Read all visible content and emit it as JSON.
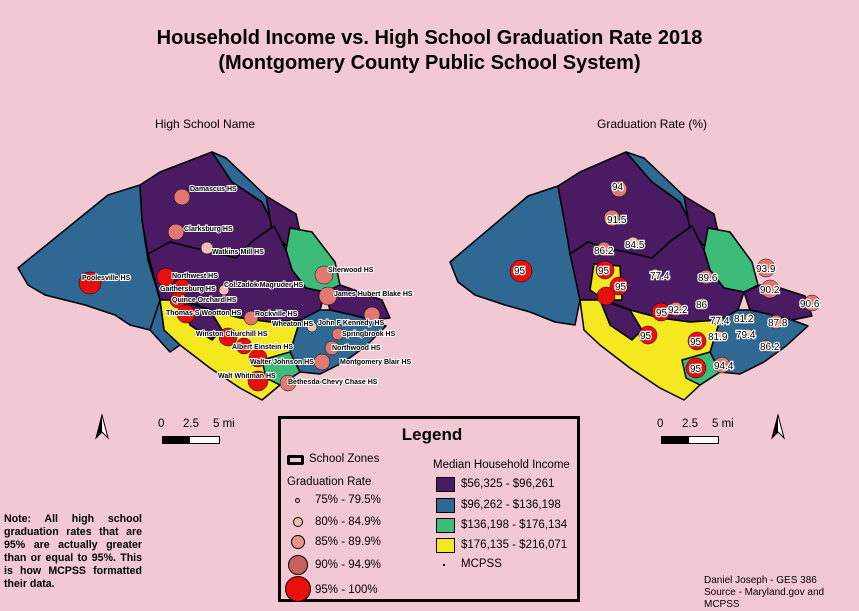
{
  "title": {
    "line1": "Household Income vs. High School Graduation Rate 2018",
    "line2": "(Montgomery County Public School System)"
  },
  "left_map": {
    "label": "High School Name",
    "schools": [
      "Damascus HS",
      "Clarksburg HS",
      "Watkins Mill HS",
      "Northwest HS",
      "Gaithersburg HS",
      "Poolesville HS",
      "Col.Zadok Magruder HS",
      "Quince Orchard HS",
      "Sherwood HS",
      "James Hubert Blake HS",
      "Thomas S Wootton HS",
      "Rockville HS",
      "Wheaton HS",
      "John F Kennedy HS",
      "Springbrook HS",
      "Winston Churchill HS",
      "Albert Einstein HS",
      "Northwood HS",
      "Walter Johnson HS",
      "Montgomery Blair HS",
      "Walt Whitman HS",
      "Bethesda-Chevy Chase HS"
    ]
  },
  "right_map": {
    "label": "Graduation Rate (%)",
    "rates": [
      "94",
      "91.5",
      "86.2",
      "84.5",
      "95",
      "95",
      "95",
      "77.4",
      "89.6",
      "93.9",
      "90.2",
      "90.6",
      "95",
      "92.2",
      "86",
      "77.4",
      "81.2",
      "87.8",
      "95",
      "81.9",
      "79.4",
      "86.2",
      "95",
      "95",
      "94.4"
    ]
  },
  "scale_bar": {
    "ticks": [
      "0",
      "2.5",
      "5 mi"
    ]
  },
  "legend": {
    "title": "Legend",
    "school_zones": "School Zones",
    "graduation_rate_title": "Graduation Rate",
    "graduation_classes": [
      "75% - 79.5%",
      "80% - 84.9%",
      "85% - 89.9%",
      "90% - 94.9%",
      "95% - 100%"
    ],
    "income_title": "Median Household Income",
    "income_classes": [
      "$56,325 - $96,261",
      "$96,262 - $136,198",
      "$136,198 - $176,134",
      "$176,135 - $216,071"
    ],
    "mcpss_label": "MCPSS"
  },
  "colors": {
    "background": "#f2c8d2",
    "income_1": "#4a1a62",
    "income_2": "#2f6893",
    "income_3": "#3dbb79",
    "income_4": "#f4e820",
    "grad_circle_light": "#f3bcb5",
    "grad_circle_mid": "#e27872",
    "grad_circle_strong": "#c86060",
    "grad_circle_red": "#e8100c"
  },
  "note": "Note: All high school graduation rates that are 95% are actually greater than or equal to 95%. This is how MCPSS formatted their data.",
  "credit": {
    "author": "Daniel Joseph - GES 386",
    "source": "Source - Maryland.gov and MCPSS"
  }
}
